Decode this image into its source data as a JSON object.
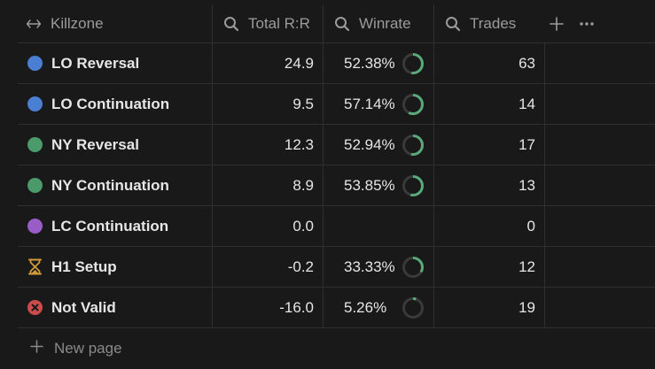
{
  "header": {
    "killzone_label": "Killzone",
    "total_rr_label": "Total R:R",
    "winrate_label": "Winrate",
    "trades_label": "Trades",
    "add_icon": "plus-icon",
    "more_icon": "more-icon"
  },
  "rows": [
    {
      "name": "LO Reversal",
      "icon": "blue-dot",
      "color": "#4a7fd4",
      "rr": "24.9",
      "winrate": "52.38%",
      "winrate_value": 0.5238,
      "trades": "63"
    },
    {
      "name": "LO Continuation",
      "icon": "blue-dot",
      "color": "#4a7fd4",
      "rr": "9.5",
      "winrate": "57.14%",
      "winrate_value": 0.5714,
      "trades": "14"
    },
    {
      "name": "NY Reversal",
      "icon": "green-dot",
      "color": "#4a9a6a",
      "rr": "12.3",
      "winrate": "52.94%",
      "winrate_value": 0.5294,
      "trades": "17"
    },
    {
      "name": "NY Continuation",
      "icon": "green-dot",
      "color": "#4a9a6a",
      "rr": "8.9",
      "winrate": "53.85%",
      "winrate_value": 0.5385,
      "trades": "13"
    },
    {
      "name": "LC Continuation",
      "icon": "purple-dot",
      "color": "#9a5cc6",
      "rr": "0.0",
      "winrate": "",
      "winrate_value": null,
      "trades": "0"
    },
    {
      "name": "H1 Setup",
      "icon": "hourglass-icon",
      "color": "#d19a3a",
      "rr": "-0.2",
      "winrate": "33.33%",
      "winrate_value": 0.3333,
      "trades": "12"
    },
    {
      "name": "Not Valid",
      "icon": "x-circle-icon",
      "color": "#cc4b4b",
      "rr": "-16.0",
      "winrate": "5.26%",
      "winrate_value": 0.0526,
      "trades": "19"
    }
  ],
  "new_page_label": "New page",
  "colors": {
    "ring_fill": "#5aa97a",
    "ring_track": "#3a3a3a"
  }
}
